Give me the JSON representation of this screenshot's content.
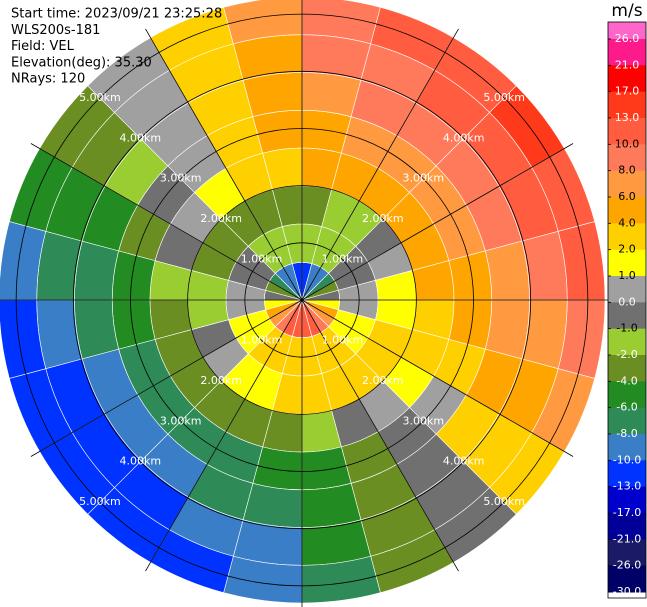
{
  "chart_data": {
    "type": "ppi",
    "info": [
      "Start time: 2023/09/21 23:25:28",
      "WLS200s-181",
      "Field: VEL",
      "Elevation(deg): 35.30",
      "NRays: 120"
    ],
    "rlim": [
      0,
      5.3
    ],
    "range_rings": [
      {
        "value": 1,
        "label": "1.00km"
      },
      {
        "value": 2,
        "label": "2.00km"
      },
      {
        "value": 3,
        "label": "3.00km"
      },
      {
        "value": 4,
        "label": "4.00km"
      },
      {
        "value": 5,
        "label": "5.00km"
      }
    ],
    "azimuths": [
      7.5,
      22.5,
      37.5,
      52.5,
      67.5,
      82.5,
      97.5,
      112.5,
      127.5,
      142.5,
      157.5,
      172.5,
      187.5,
      202.5,
      217.5,
      232.5,
      247.5,
      262.5,
      277.5,
      292.5,
      307.5,
      322.5,
      337.5,
      352.5
    ],
    "range_edges": [
      0,
      0.66,
      1.33,
      2,
      2.66,
      3.32,
      3.98,
      4.64,
      5.3
    ],
    "values_by_range": [
      [
        -11,
        -10,
        -9,
        -7,
        -4,
        -1,
        1,
        4,
        7,
        9,
        10,
        11,
        11,
        10,
        9,
        7,
        4,
        1,
        -1,
        -4,
        -7,
        -9,
        -10,
        -11
      ],
      [
        -2,
        -2,
        -2,
        -1,
        -1,
        0,
        0,
        1,
        1,
        2,
        2,
        2,
        2,
        2,
        2,
        1,
        1,
        0,
        0,
        -1,
        -1,
        -2,
        -2,
        -2
      ],
      [
        -2.4,
        -1.8,
        -1.1,
        -0.4,
        0.4,
        1.1,
        1.8,
        2.4,
        2.8,
        3.0,
        3.0,
        2.8,
        2.4,
        1.8,
        1.1,
        0.4,
        -0.4,
        -1.1,
        -1.8,
        -2.4,
        -2.8,
        -3.0,
        -3.0,
        -2.8
      ],
      [
        4.2,
        4.7,
        5.0,
        5.0,
        4.7,
        4.2,
        3.4,
        2.5,
        1.5,
        0.5,
        -0.5,
        -1.4,
        -2.2,
        -2.7,
        -3.0,
        -3.0,
        -2.7,
        -2.2,
        -1.4,
        -0.5,
        0.5,
        1.5,
        2.5,
        3.4
      ],
      [
        5.5,
        6.4,
        6.9,
        6.9,
        6.4,
        5.5,
        4.3,
        2.7,
        0.9,
        -0.9,
        -2.7,
        -4.3,
        -5.5,
        -6.4,
        -6.9,
        -6.9,
        -6.4,
        -5.5,
        -4.3,
        -2.7,
        -0.9,
        0.9,
        2.7,
        4.3
      ],
      [
        6.7,
        8.0,
        8.8,
        9.0,
        8.6,
        7.6,
        6.1,
        4.1,
        2.0,
        -0.4,
        -2.7,
        -4.9,
        -6.7,
        -8.0,
        -8.8,
        -9.0,
        -8.6,
        -7.6,
        -6.1,
        -4.1,
        -2.0,
        0.4,
        2.7,
        4.9
      ],
      [
        8.1,
        9.8,
        10.8,
        11.0,
        10.5,
        9.2,
        7.5,
        5.1,
        2.4,
        -0.4,
        -3.3,
        -5.9,
        -8.1,
        -9.8,
        -10.8,
        -11.0,
        -10.5,
        -9.2,
        -7.5,
        -5.1,
        -2.4,
        0.4,
        3.3,
        5.9
      ],
      [
        9.6,
        11.6,
        12.7,
        13.0,
        12.4,
        10.9,
        8.8,
        6.0,
        2.9,
        -0.5,
        -3.9,
        -7.0,
        -9.6,
        -11.6,
        -12.7,
        -13.0,
        -12.4,
        -10.9,
        -8.8,
        -6.0,
        -2.9,
        0.5,
        3.9,
        7.0
      ]
    ],
    "colorbar": {
      "title": "m/s",
      "ticks": [
        {
          "value": 26,
          "label": "26.0"
        },
        {
          "value": 21,
          "label": "21.0"
        },
        {
          "value": 17,
          "label": "17.0"
        },
        {
          "value": 13,
          "label": "13.0"
        },
        {
          "value": 10,
          "label": "10.0"
        },
        {
          "value": 8,
          "label": "8.0"
        },
        {
          "value": 6,
          "label": "6.0"
        },
        {
          "value": 4,
          "label": "4.0"
        },
        {
          "value": 2,
          "label": "2.0"
        },
        {
          "value": 1,
          "label": "1.0"
        },
        {
          "value": 0,
          "label": "0.0"
        },
        {
          "value": -1,
          "label": "-1.0"
        },
        {
          "value": -2,
          "label": "-2.0"
        },
        {
          "value": -4,
          "label": "-4.0"
        },
        {
          "value": -6,
          "label": "-6.0"
        },
        {
          "value": -8,
          "label": "-8.0"
        },
        {
          "value": -10,
          "label": "-10.0"
        },
        {
          "value": -13,
          "label": "-13.0"
        },
        {
          "value": -17,
          "label": "-17.0"
        },
        {
          "value": -21,
          "label": "-21.0"
        },
        {
          "value": -26,
          "label": "-26.0"
        },
        {
          "value": -30,
          "label": "-30.0"
        }
      ],
      "colors": [
        "#ff66cc",
        "#ff1a8c",
        "#ff0000",
        "#ff3a1a",
        "#ff5c40",
        "#ff7a5a",
        "#ff9a40",
        "#ffa500",
        "#ffd000",
        "#ffff00",
        "#a0a0a0",
        "#707070",
        "#9acd32",
        "#6b8e23",
        "#228b22",
        "#2e8b57",
        "#3a7ec8",
        "#0033ff",
        "#0000cc",
        "#000099",
        "#1a1a66",
        "#000066"
      ]
    }
  }
}
